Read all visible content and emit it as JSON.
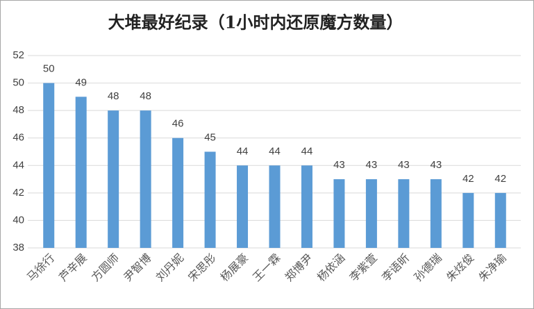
{
  "chart_data": {
    "type": "bar",
    "title": "大堆最好纪录（1小时内还原魔方数量）",
    "categories": [
      "马徐行",
      "芦辛展",
      "方圆师",
      "尹智博",
      "刘丹妮",
      "宋思彤",
      "杨展豪",
      "王一霖",
      "郑博尹",
      "杨依涵",
      "李紫萱",
      "李语昕",
      "孙德瑞",
      "朱炫俊",
      "朱净瑜"
    ],
    "values": [
      50,
      49,
      48,
      48,
      46,
      45,
      44,
      44,
      44,
      43,
      43,
      43,
      43,
      42,
      42
    ],
    "color": "#5b9bd5",
    "ylim": [
      38,
      52
    ],
    "yticks": [
      38,
      40,
      42,
      44,
      46,
      48,
      50,
      52
    ],
    "grid": true
  }
}
